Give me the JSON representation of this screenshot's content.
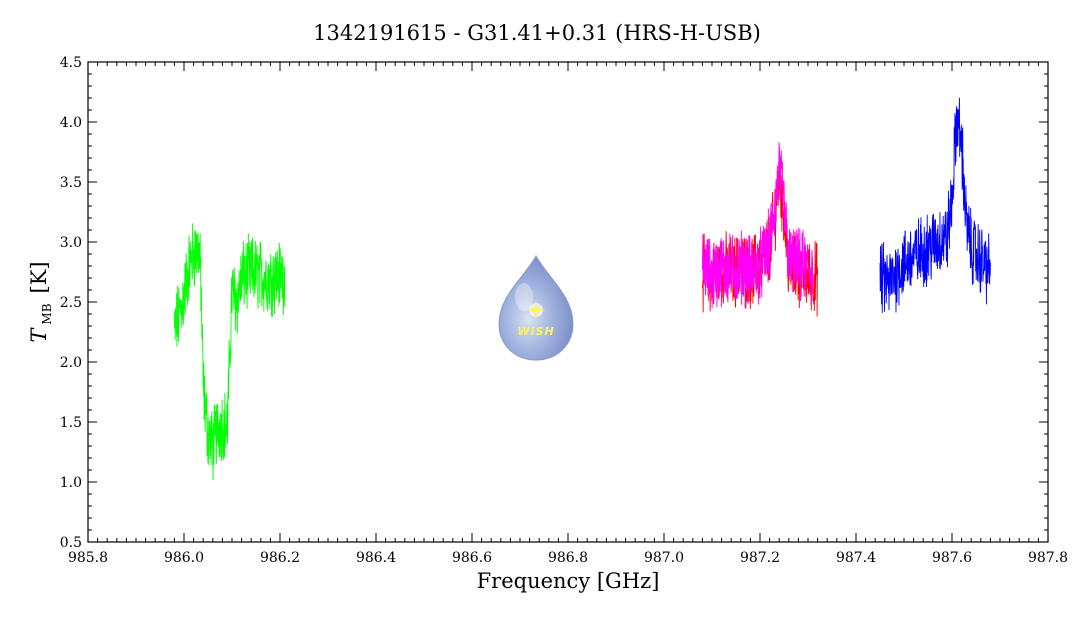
{
  "chart_data": {
    "type": "line",
    "title": "1342191615 - G31.41+0.31 (HRS-H-USB)",
    "xlabel": "Frequency [GHz]",
    "ylabel_main": "T",
    "ylabel_sub": "MB",
    "ylabel_unit": "[K]",
    "xlim": [
      985.8,
      987.8
    ],
    "ylim": [
      0.5,
      4.5
    ],
    "x_ticks": [
      985.8,
      986.0,
      986.2,
      986.4,
      986.6,
      986.8,
      987.0,
      987.2,
      987.4,
      987.6,
      987.8
    ],
    "x_tick_labels": [
      "985.8",
      "986.0",
      "986.2",
      "986.4",
      "986.6",
      "986.8",
      "987.0",
      "987.2",
      "987.4",
      "987.6",
      "987.8"
    ],
    "y_ticks": [
      0.5,
      1.0,
      1.5,
      2.0,
      2.5,
      3.0,
      3.5,
      4.0,
      4.5
    ],
    "y_tick_labels": [
      "0.5",
      "1.0",
      "1.5",
      "2.0",
      "2.5",
      "3.0",
      "3.5",
      "4.0",
      "4.5"
    ],
    "grid": false,
    "logo_text": "WISH",
    "series": [
      {
        "color": "#00ff00",
        "x": [
          985.98,
          985.99,
          986.0,
          986.01,
          986.02,
          986.03,
          986.035,
          986.04,
          986.05,
          986.06,
          986.07,
          986.08,
          986.09,
          986.095,
          986.1,
          986.11,
          986.12,
          986.14,
          986.16,
          986.18,
          986.2,
          986.21
        ],
        "y": [
          2.25,
          2.4,
          2.55,
          2.8,
          2.9,
          2.95,
          2.7,
          1.8,
          1.4,
          1.3,
          1.45,
          1.5,
          1.45,
          2.0,
          2.6,
          2.5,
          2.7,
          2.75,
          2.72,
          2.7,
          2.72,
          2.7
        ]
      },
      {
        "color": "#ff0000",
        "x": [
          987.08,
          987.1,
          987.12,
          987.14,
          987.16,
          987.18,
          987.2,
          987.22,
          987.23,
          987.24,
          987.25,
          987.26,
          987.28,
          987.3,
          987.32
        ],
        "y": [
          2.75,
          2.7,
          2.78,
          2.75,
          2.78,
          2.75,
          2.8,
          2.95,
          3.2,
          3.55,
          3.25,
          2.8,
          2.75,
          2.72,
          2.7
        ]
      },
      {
        "color": "#ff00ff",
        "x": [
          987.08,
          987.1,
          987.12,
          987.14,
          987.16,
          987.18,
          987.2,
          987.22,
          987.23,
          987.24,
          987.25,
          987.26,
          987.28,
          987.3,
          987.31
        ],
        "y": [
          2.8,
          2.72,
          2.78,
          2.76,
          2.8,
          2.76,
          2.8,
          2.97,
          3.25,
          3.6,
          3.3,
          2.85,
          2.8,
          2.78,
          2.75
        ]
      },
      {
        "color": "#0000ff",
        "x": [
          987.45,
          987.47,
          987.49,
          987.51,
          987.53,
          987.55,
          987.57,
          987.59,
          987.6,
          987.61,
          987.62,
          987.63,
          987.64,
          987.66,
          987.68
        ],
        "y": [
          2.7,
          2.65,
          2.78,
          2.85,
          2.9,
          2.95,
          3.0,
          3.05,
          3.35,
          4.05,
          3.8,
          3.15,
          2.95,
          2.85,
          2.75
        ]
      }
    ]
  }
}
